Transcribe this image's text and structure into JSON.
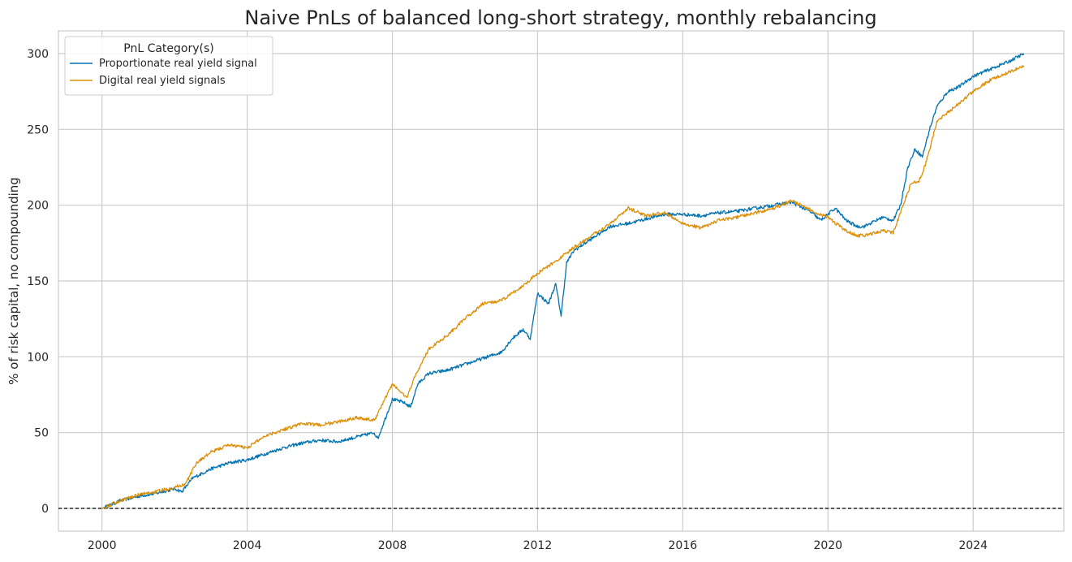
{
  "chart_data": {
    "type": "line",
    "title": "Naive PnLs of balanced long-short strategy, monthly rebalancing",
    "xlabel": "",
    "ylabel": "% of risk capital, no compounding",
    "xlim": [
      1998.8,
      2026.5
    ],
    "ylim": [
      -15,
      315
    ],
    "x_ticks": [
      2000,
      2004,
      2008,
      2012,
      2016,
      2020,
      2024
    ],
    "x_tick_labels": [
      "2000",
      "2004",
      "2008",
      "2012",
      "2016",
      "2020",
      "2024"
    ],
    "y_ticks": [
      0,
      50,
      100,
      150,
      200,
      250,
      300
    ],
    "y_tick_labels": [
      "0",
      "50",
      "100",
      "150",
      "200",
      "250",
      "300"
    ],
    "grid": true,
    "zero_line": {
      "y": 0,
      "style": "dashed",
      "color": "#000000"
    },
    "legend": {
      "title": "PnL Category(s)",
      "placement": "top-left"
    },
    "series": [
      {
        "name": "Proportionate real yield signal",
        "color": "#0173b2",
        "x": [
          2000.0,
          2000.5,
          2001.0,
          2001.5,
          2002.0,
          2002.2,
          2002.5,
          2003.0,
          2003.5,
          2004.0,
          2004.5,
          2005.0,
          2005.5,
          2006.0,
          2006.5,
          2007.0,
          2007.5,
          2007.6,
          2008.0,
          2008.3,
          2008.5,
          2008.7,
          2009.0,
          2009.5,
          2010.0,
          2010.5,
          2011.0,
          2011.3,
          2011.6,
          2011.8,
          2012.0,
          2012.3,
          2012.5,
          2012.65,
          2012.8,
          2013.0,
          2013.5,
          2014.0,
          2014.5,
          2015.0,
          2015.5,
          2016.0,
          2016.5,
          2017.0,
          2017.5,
          2018.0,
          2018.5,
          2019.0,
          2019.5,
          2019.8,
          2020.2,
          2020.5,
          2020.8,
          2021.0,
          2021.5,
          2021.8,
          2022.0,
          2022.2,
          2022.4,
          2022.6,
          2022.8,
          2023.0,
          2023.3,
          2023.6,
          2024.0,
          2024.5,
          2025.0,
          2025.4
        ],
        "values": [
          0,
          5,
          8,
          10,
          13,
          11,
          20,
          26,
          30,
          32,
          36,
          40,
          43,
          45,
          44,
          47,
          50,
          46,
          72,
          70,
          67,
          82,
          89,
          91,
          95,
          99,
          103,
          112,
          118,
          112,
          142,
          135,
          148,
          127,
          162,
          170,
          178,
          186,
          188,
          191,
          194,
          194,
          193,
          195,
          196,
          198,
          200,
          202,
          196,
          190,
          198,
          190,
          186,
          186,
          192,
          190,
          200,
          225,
          237,
          232,
          250,
          265,
          275,
          278,
          285,
          290,
          295,
          300
        ]
      },
      {
        "name": "Digital real yield signals",
        "color": "#de8f05",
        "x": [
          2000.0,
          2000.5,
          2001.0,
          2001.5,
          2002.0,
          2002.3,
          2002.6,
          2003.0,
          2003.5,
          2004.0,
          2004.5,
          2005.0,
          2005.5,
          2006.0,
          2006.5,
          2007.0,
          2007.5,
          2008.0,
          2008.4,
          2008.6,
          2009.0,
          2009.5,
          2010.0,
          2010.5,
          2011.0,
          2011.5,
          2012.0,
          2012.5,
          2013.0,
          2013.5,
          2014.0,
          2014.5,
          2015.0,
          2015.5,
          2016.0,
          2016.5,
          2017.0,
          2017.5,
          2018.0,
          2018.5,
          2019.0,
          2019.5,
          2020.0,
          2020.5,
          2020.8,
          2021.0,
          2021.5,
          2021.8,
          2022.0,
          2022.3,
          2022.5,
          2022.7,
          2023.0,
          2023.5,
          2024.0,
          2024.5,
          2025.0,
          2025.4
        ],
        "values": [
          0,
          5,
          9,
          11,
          14,
          16,
          30,
          37,
          42,
          40,
          48,
          52,
          56,
          55,
          57,
          60,
          58,
          82,
          73,
          86,
          105,
          114,
          125,
          135,
          137,
          145,
          155,
          163,
          172,
          180,
          188,
          198,
          193,
          195,
          188,
          185,
          190,
          192,
          195,
          198,
          203,
          197,
          192,
          183,
          180,
          180,
          183,
          182,
          195,
          215,
          215,
          228,
          255,
          265,
          275,
          283,
          288,
          292
        ]
      }
    ]
  }
}
